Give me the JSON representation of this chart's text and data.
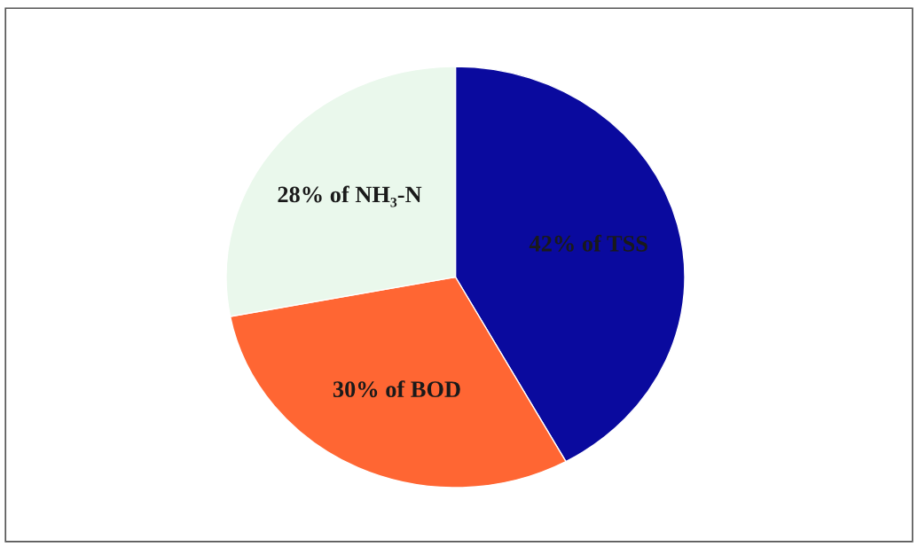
{
  "chart_data": {
    "type": "pie",
    "categories": [
      "42% of TSS",
      "30% of BOD",
      "28% of NH₃-N"
    ],
    "values": [
      42,
      30,
      28
    ],
    "colors": [
      "#0a0a9e",
      "#ff6633",
      "#eaf8ec"
    ],
    "legend": false
  }
}
